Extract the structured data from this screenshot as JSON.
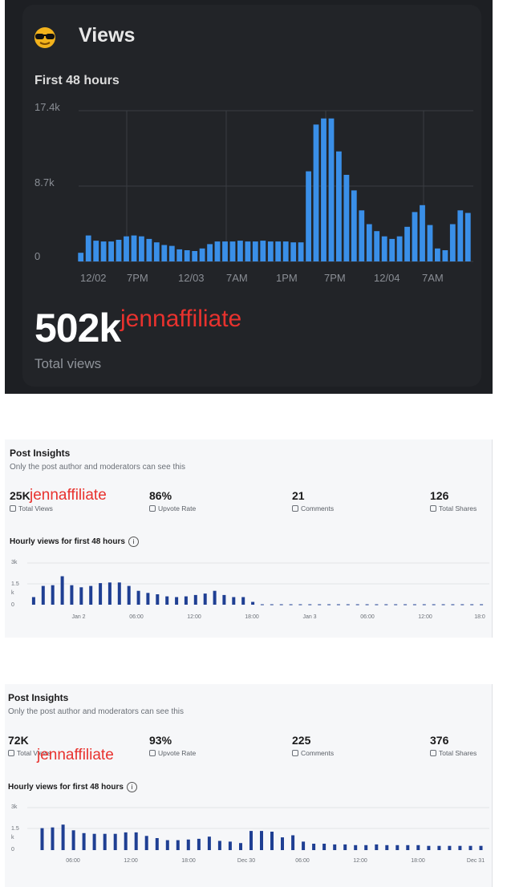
{
  "panel_views": {
    "title": "Views",
    "subtitle": "First 48 hours",
    "total": "502k",
    "total_label": "Total views",
    "watermark": "jennaffiliate",
    "icon": "sunglasses-emoji-icon"
  },
  "insights_a": {
    "title": "Post Insights",
    "subtitle": "Only the post author and moderators can see this",
    "watermark": "jennaffiliate",
    "stats": [
      {
        "value": "25K",
        "label": "Total Views",
        "icon": "eye-icon"
      },
      {
        "value": "86%",
        "label": "Upvote Rate",
        "icon": "upvote-icon"
      },
      {
        "value": "21",
        "label": "Comments",
        "icon": "comment-icon"
      },
      {
        "value": "126",
        "label": "Total Shares",
        "icon": "share-icon"
      }
    ],
    "hourly_label": "Hourly views for first 48 hours",
    "info_glyph": "i"
  },
  "insights_b": {
    "title": "Post Insights",
    "subtitle": "Only the post author and moderators can see this",
    "watermark": "jennaffiliate",
    "stats": [
      {
        "value": "72K",
        "label": "Total Views",
        "icon": "eye-icon"
      },
      {
        "value": "93%",
        "label": "Upvote Rate",
        "icon": "upvote-icon"
      },
      {
        "value": "225",
        "label": "Comments",
        "icon": "comment-icon"
      },
      {
        "value": "376",
        "label": "Total Shares",
        "icon": "share-icon"
      }
    ],
    "hourly_label": "Hourly views for first 48 hours",
    "info_glyph": "i"
  },
  "chart_data": [
    {
      "type": "bar",
      "y_ticks": [
        "17.4k",
        "8.7k",
        "0"
      ],
      "ylim": [
        0,
        17400
      ],
      "x_tick_labels": [
        "12/02",
        "7PM",
        "12/03",
        "7AM",
        "1PM",
        "7PM",
        "12/04",
        "7AM"
      ],
      "values": [
        1000,
        3000,
        2400,
        2300,
        2300,
        2500,
        2900,
        3000,
        2900,
        2600,
        2200,
        1900,
        1800,
        1400,
        1300,
        1200,
        1500,
        2000,
        2300,
        2300,
        2300,
        2400,
        2300,
        2300,
        2400,
        2300,
        2300,
        2300,
        2200,
        2200,
        10400,
        15800,
        16500,
        16500,
        12700,
        10000,
        8200,
        5900,
        4300,
        3500,
        2900,
        2600,
        2900,
        4000,
        5700,
        6500,
        4200,
        1500,
        1300,
        4300,
        5900,
        5600
      ],
      "color": "#3a8fe8",
      "grid": true
    },
    {
      "type": "bar",
      "y_ticks": [
        "3k",
        "1.5",
        "k",
        "0"
      ],
      "ylim": [
        0,
        3000
      ],
      "x_tick_labels": [
        "Jan 2",
        "06:00",
        "12:00",
        "18:00",
        "Jan 3",
        "06:00",
        "12:00",
        "18:0"
      ],
      "values": [
        550,
        1350,
        1400,
        2050,
        1400,
        1250,
        1350,
        1550,
        1600,
        1600,
        1350,
        1000,
        850,
        750,
        600,
        550,
        600,
        700,
        800,
        1000,
        700,
        550,
        550,
        200,
        30,
        30,
        30,
        30,
        30,
        30,
        30,
        30,
        30,
        30,
        30,
        30,
        30,
        30,
        30,
        30,
        30,
        30,
        30,
        30,
        30,
        30,
        30,
        30
      ],
      "color": "#1f3f93",
      "grid": true
    },
    {
      "type": "bar",
      "y_ticks": [
        "3k",
        "1.5",
        "k",
        "0"
      ],
      "ylim": [
        0,
        3000
      ],
      "x_tick_labels": [
        "06:00",
        "12:00",
        "18:00",
        "Dec 30",
        "06:00",
        "12:00",
        "18:00",
        "Dec 31"
      ],
      "values": [
        1550,
        1600,
        1800,
        1400,
        1200,
        1150,
        1150,
        1150,
        1250,
        1250,
        1000,
        850,
        700,
        700,
        750,
        800,
        950,
        650,
        600,
        500,
        1350,
        1350,
        1300,
        900,
        1050,
        600,
        450,
        450,
        400,
        400,
        350,
        350,
        400,
        350,
        350,
        350,
        350,
        300,
        300,
        300,
        300,
        300,
        300
      ],
      "color": "#1f3f93",
      "grid": true
    }
  ]
}
